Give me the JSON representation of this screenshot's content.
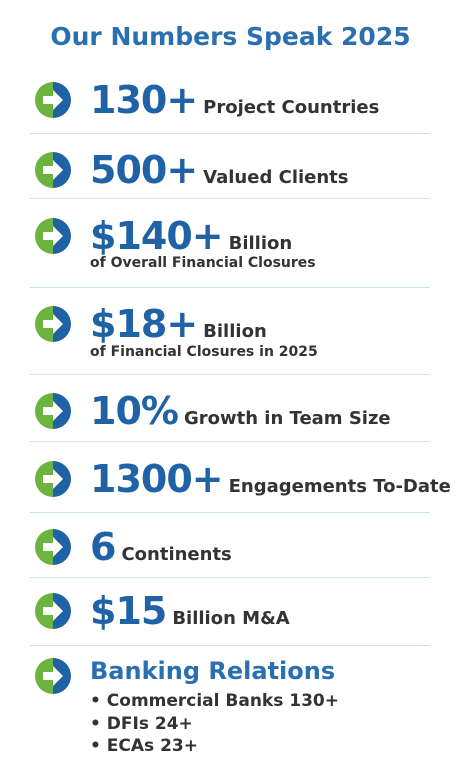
{
  "title": "Our Numbers Speak 2025",
  "items": [
    {
      "number": "130+",
      "label": "Project Countries"
    },
    {
      "number": "500+",
      "label": "Valued Clients"
    },
    {
      "number": "$140+",
      "label": "Billion",
      "sub": "of Overall Financial Closures"
    },
    {
      "number": "$18+",
      "label": "Billion",
      "sub": "of Financial Closures in 2025"
    },
    {
      "number": "10%",
      "label": "Growth in Team Size"
    },
    {
      "number": "1300+",
      "label": "Engagements To-Date"
    },
    {
      "number": "6",
      "label": "Continents"
    },
    {
      "number": "$15",
      "label": "Billion M&A"
    }
  ],
  "banking": {
    "heading": "Banking Relations",
    "bullets": [
      "Commercial Banks 130+",
      "DFIs 24+",
      "ECAs 23+"
    ]
  }
}
